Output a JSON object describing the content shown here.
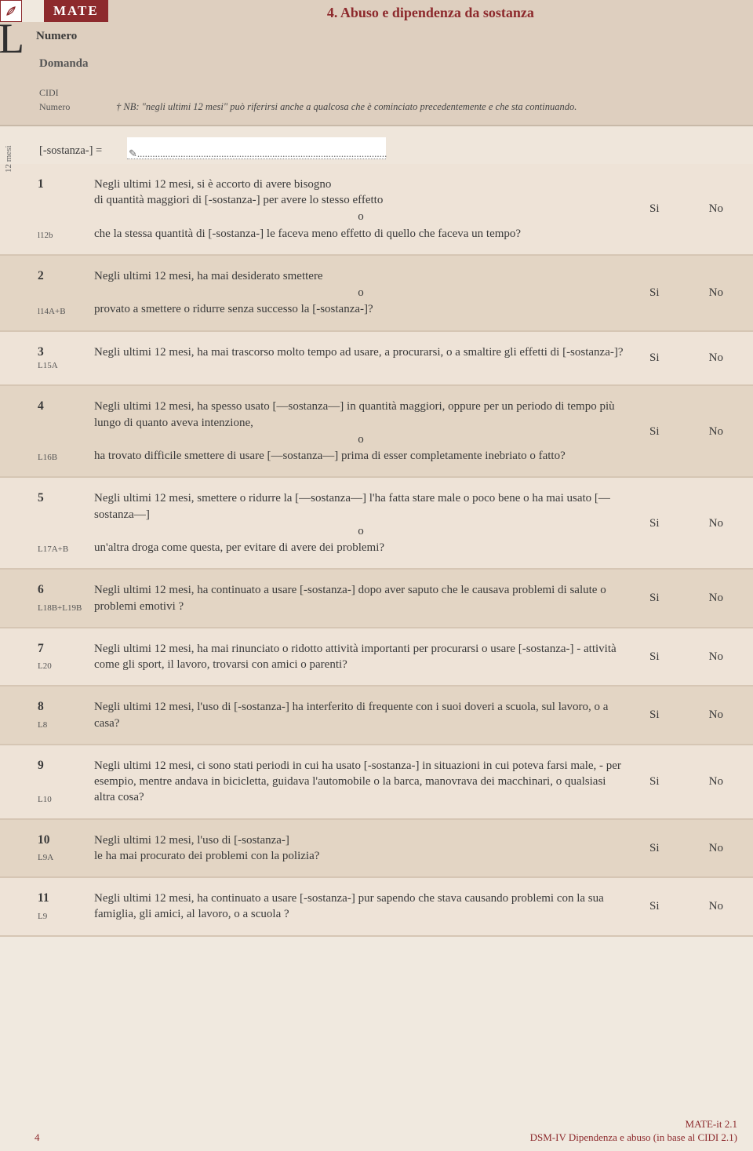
{
  "colors": {
    "brand": "#8d2a2d",
    "bg_page": "#f0e9df",
    "bg_header": "#decfbf",
    "bg_row_even": "#eee3d7",
    "bg_row_odd": "#e3d5c4",
    "border": "#d6c6b4",
    "text": "#3a3a3a"
  },
  "header": {
    "logo": "MATE",
    "section_title": "4. Abuso e dipendenza da sostanza",
    "big_letter": "L",
    "numero_label": "Numero",
    "domanda_label": "Domanda",
    "cidi_label": "CIDI",
    "cidi_numero_label": "Numero",
    "note": "† NB: \"negli ultimi 12 mesi\" può riferirsi anche a qualcosa che è cominciato precedentemente e che sta continuando.",
    "sostanza_label": "[-sostanza-] =",
    "sostanza_value": "",
    "side_tab": "12 mesi"
  },
  "answers": {
    "yes": "Si",
    "no": "No"
  },
  "questions": [
    {
      "num": "1",
      "code": "l12b",
      "lines": [
        "Negli ultimi 12 mesi, si è accorto di avere bisogno",
        "di quantità maggiori di [-sostanza-] per avere lo stesso effetto"
      ],
      "sep": "o",
      "lines2": [
        "che la stessa quantità di [-sostanza-] le faceva meno effetto di quello che faceva un tempo?"
      ]
    },
    {
      "num": "2",
      "code": "l14A+B",
      "lines": [
        "Negli ultimi 12 mesi, ha mai desiderato smettere"
      ],
      "sep": "o",
      "lines2": [
        "provato a smettere o ridurre senza successo la [-sostanza-]?"
      ]
    },
    {
      "num": "3",
      "code": "L15A",
      "lines": [
        "Negli ultimi 12 mesi, ha mai trascorso molto tempo ad usare, a procurarsi, o a smaltire gli effetti di [-sostanza-]?"
      ]
    },
    {
      "num": "4",
      "code": "L16B",
      "lines": [
        "Negli ultimi 12 mesi, ha spesso usato [—sostanza—] in quantità maggiori, oppure per un periodo di tempo più lungo di quanto aveva intenzione,"
      ],
      "sep": "o",
      "lines2": [
        " ha trovato difficile smettere di usare [—sostanza—] prima di esser completamente inebriato o fatto?"
      ]
    },
    {
      "num": "5",
      "code": "L17A+B",
      "lines": [
        "Negli ultimi 12 mesi, smettere o ridurre la [—sostanza—] l'ha fatta stare male o poco bene o ha mai usato [—sostanza—]"
      ],
      "sep": "o",
      "lines2": [
        "un'altra droga come questa, per evitare di avere dei problemi?"
      ]
    },
    {
      "num": "6",
      "code": "L18B+L19B",
      "lines": [
        "Negli ultimi 12 mesi, ha continuato a usare [-sostanza-] dopo aver saputo che le causava problemi di salute o problemi emotivi ?"
      ]
    },
    {
      "num": "7",
      "code": "L20",
      "lines": [
        "Negli ultimi 12 mesi, ha mai rinunciato o ridotto attività importanti per procurarsi o usare [-sostanza-] - attività come gli sport, il lavoro, trovarsi con amici o parenti?"
      ]
    },
    {
      "num": "8",
      "code": "L8",
      "lines": [
        "Negli ultimi 12 mesi, l'uso di [-sostanza-] ha interferito di frequente con i suoi doveri a scuola, sul lavoro, o a casa?"
      ]
    },
    {
      "num": "9",
      "code": "L10",
      "lines": [
        "Negli ultimi 12 mesi, ci sono stati periodi in cui ha usato [-sostanza-] in situazioni in cui poteva farsi male, - per esempio, mentre andava in bicicletta, guidava l'automobile o la barca, manovrava dei macchinari, o qualsiasi altra cosa?"
      ]
    },
    {
      "num": "10",
      "code": "L9A",
      "lines": [
        "Negli ultimi 12 mesi, l'uso di [-sostanza-]",
        "le ha mai procurato dei problemi con la polizia?"
      ]
    },
    {
      "num": "11",
      "code": "L9",
      "lines": [
        "Negli ultimi 12 mesi, ha continuato a usare [-sostanza-] pur sapendo che stava causando problemi con la sua famiglia, gli amici, al lavoro, o a scuola ?"
      ]
    }
  ],
  "footer": {
    "page": "4",
    "right1": "MATE-it 2.1",
    "right2": "DSM-IV Dipendenza e abuso (in base al CIDI 2.1)"
  }
}
